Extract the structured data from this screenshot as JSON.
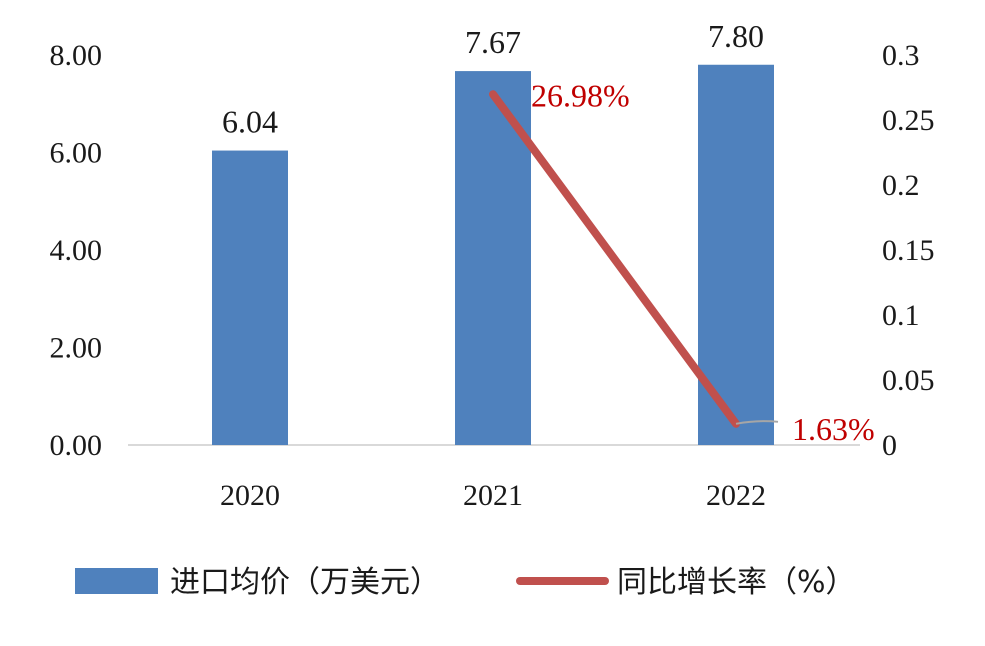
{
  "chart_data": {
    "type": "bar",
    "categories": [
      "2020",
      "2021",
      "2022"
    ],
    "series": [
      {
        "name": "进口均价（万美元）",
        "type": "bar",
        "axis": "left",
        "values": [
          6.04,
          7.67,
          7.8
        ],
        "labels": [
          "6.04",
          "7.67",
          "7.80"
        ],
        "color": "#4f81bd"
      },
      {
        "name": "同比增长率（%）",
        "type": "line",
        "axis": "right",
        "points": [
          {
            "category": "2021",
            "value": 0.2698,
            "label": "26.98%"
          },
          {
            "category": "2022",
            "value": 0.0163,
            "label": "1.63%"
          }
        ],
        "color": "#c0504d",
        "label_color": "#c00000"
      }
    ],
    "y_left": {
      "ylim": [
        0,
        8
      ],
      "ticks": [
        0,
        2,
        4,
        6,
        8
      ],
      "tick_labels": [
        "0.00",
        "2.00",
        "4.00",
        "6.00",
        "8.00"
      ]
    },
    "y_right": {
      "ylim": [
        0,
        0.3
      ],
      "ticks": [
        0,
        0.05,
        0.1,
        0.15,
        0.2,
        0.25,
        0.3
      ],
      "tick_labels": [
        "0",
        "0.05",
        "0.1",
        "0.15",
        "0.2",
        "0.25",
        "0.3"
      ]
    },
    "grid": false,
    "legend": "bottom",
    "title": "",
    "xlabel": "",
    "ylabel": ""
  }
}
